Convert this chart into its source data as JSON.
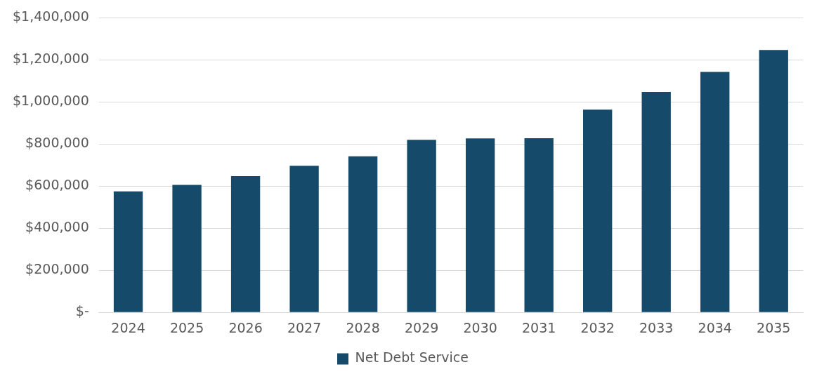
{
  "chart_data": {
    "type": "bar",
    "categories": [
      "2024",
      "2025",
      "2026",
      "2027",
      "2028",
      "2029",
      "2030",
      "2031",
      "2032",
      "2033",
      "2034",
      "2035"
    ],
    "series": [
      {
        "name": "Net Debt Service",
        "color": "#154a6a",
        "values": [
          575000,
          606000,
          648000,
          697000,
          742000,
          820000,
          827000,
          828000,
          964000,
          1048000,
          1143000,
          1247000
        ]
      }
    ],
    "ylim": [
      0,
      1400000
    ],
    "yticks": [
      {
        "value": 0,
        "label": "$-"
      },
      {
        "value": 200000,
        "label": "$200,000"
      },
      {
        "value": 400000,
        "label": "$400,000"
      },
      {
        "value": 600000,
        "label": "$600,000"
      },
      {
        "value": 800000,
        "label": "$800,000"
      },
      {
        "value": 1000000,
        "label": "$1,000,000"
      },
      {
        "value": 1200000,
        "label": "$1,200,000"
      },
      {
        "value": 1400000,
        "label": "$1,400,000"
      }
    ],
    "grid": "y",
    "legend": "bottom"
  }
}
